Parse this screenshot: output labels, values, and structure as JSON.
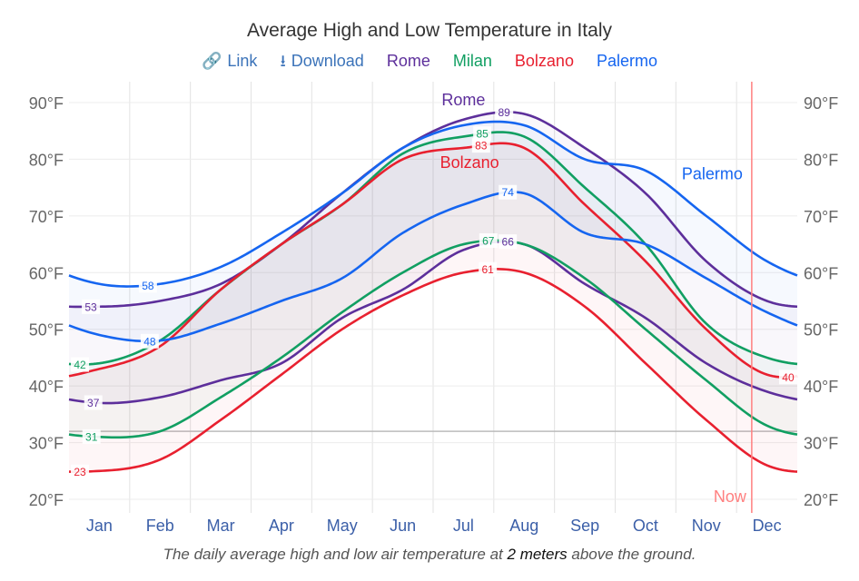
{
  "title": "Average High and Low Temperature in Italy",
  "toolbar": {
    "link_label": "Link",
    "download_label": "Download",
    "link_icon": "link-icon",
    "download_icon": "download-icon"
  },
  "caption": {
    "before": "The daily average high and low air temperature at ",
    "emph": "2 meters",
    "after": " above the ground."
  },
  "chart_data": {
    "type": "line",
    "title": "Average High and Low Temperature in Italy",
    "categories": [
      "Jan",
      "Feb",
      "Mar",
      "Apr",
      "May",
      "Jun",
      "Jul",
      "Aug",
      "Sep",
      "Oct",
      "Nov",
      "Dec"
    ],
    "y_ticks": [
      "20°F",
      "30°F",
      "40°F",
      "50°F",
      "60°F",
      "70°F",
      "80°F",
      "90°F"
    ],
    "ylim": [
      20,
      90
    ],
    "grid": true,
    "legend": "top",
    "freezing_line": 32,
    "now_marker": {
      "label": "Now",
      "month": 10.75,
      "color": "#ff7f7f"
    },
    "series": [
      {
        "name": "Rome",
        "color": "#5d2f9b",
        "high": [
          54,
          55,
          58,
          65,
          74,
          82,
          87,
          88,
          82,
          74,
          62,
          55
        ],
        "low": [
          37,
          38,
          41,
          44,
          52,
          57,
          64,
          65,
          58,
          52,
          44,
          39
        ],
        "labels": [
          {
            "v": "53",
            "m": -0.14,
            "k": "high"
          },
          {
            "v": "89",
            "m": 6.67,
            "k": "high"
          },
          {
            "v": "37",
            "m": -0.1,
            "k": "low"
          },
          {
            "v": "66",
            "m": 6.73,
            "k": "low"
          }
        ],
        "name_label_month": 6.0,
        "name_label_temp": 89.5
      },
      {
        "name": "Milan",
        "color": "#119f62",
        "high": [
          44,
          48,
          57,
          65,
          72,
          81,
          84,
          84,
          75,
          65,
          51,
          45
        ],
        "low": [
          31,
          32,
          38,
          45,
          53,
          60,
          65,
          65,
          59,
          50,
          41,
          33
        ],
        "labels": [
          {
            "v": "42",
            "m": -0.32,
            "k": "high"
          },
          {
            "v": "85",
            "m": 6.31,
            "k": "high"
          },
          {
            "v": "31",
            "m": -0.13,
            "k": "low"
          },
          {
            "v": "67",
            "m": 6.41,
            "k": "low"
          }
        ]
      },
      {
        "name": "Bolzano",
        "color": "#e8202f",
        "high": [
          43,
          47,
          57,
          65,
          72,
          80,
          82,
          82,
          72,
          62,
          50,
          42
        ],
        "low": [
          25,
          27,
          34,
          42,
          50,
          56,
          60,
          60,
          54,
          44,
          34,
          26
        ],
        "labels": [
          {
            "v": "40",
            "m": 11.35,
            "k": "high"
          },
          {
            "v": "83",
            "m": 6.29,
            "k": "high"
          },
          {
            "v": "23",
            "m": -0.32,
            "k": "low"
          },
          {
            "v": "61",
            "m": 6.4,
            "k": "low"
          }
        ],
        "name_label_month": 6.1,
        "name_label_temp": 78.5
      },
      {
        "name": "Palermo",
        "color": "#1565f0",
        "high": [
          58,
          58,
          61,
          67,
          74,
          82,
          86,
          86,
          80,
          78,
          70,
          62
        ],
        "low": [
          49,
          48,
          51,
          55,
          59,
          67,
          72,
          74,
          67,
          65,
          59,
          53
        ],
        "labels": [
          {
            "v": "58",
            "m": 0.8,
            "k": "high"
          },
          {
            "v": "74",
            "m": 6.73,
            "k": "low"
          },
          {
            "v": "48",
            "m": 0.83,
            "k": "low"
          }
        ],
        "name_label_month": 10.1,
        "name_label_temp": 76.5
      }
    ]
  }
}
